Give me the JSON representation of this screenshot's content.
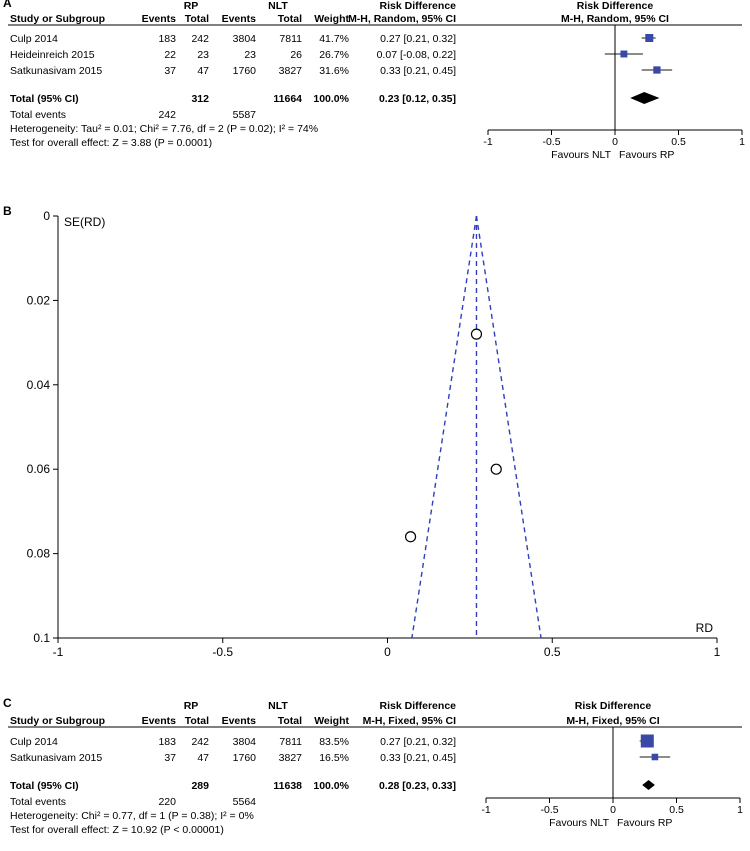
{
  "panels": {
    "A": {
      "letter": "A",
      "group1": "RP",
      "group2": "NLT",
      "col_study": "Study or Subgroup",
      "col_events1": "Events",
      "col_total1": "Total",
      "col_events2": "Events",
      "col_total2": "Total",
      "col_weight": "Weight",
      "col_rd_title": "Risk Difference",
      "col_rd_method": "M-H, Random, 95% CI",
      "plot_title": "Risk Difference",
      "plot_method": "M-H, Random, 95% CI",
      "studies": [
        {
          "name": "Culp 2014",
          "events1": "183",
          "total1": "242",
          "events2": "3804",
          "total2": "7811",
          "weight": "41.7%",
          "ci_text": "0.27 [0.21, 0.32]",
          "est": 0.27,
          "lo": 0.21,
          "hi": 0.32,
          "w": 41.7
        },
        {
          "name": "Heideinreich 2015",
          "events1": "22",
          "total1": "23",
          "events2": "23",
          "total2": "26",
          "weight": "26.7%",
          "ci_text": "0.07 [-0.08, 0.22]",
          "est": 0.07,
          "lo": -0.08,
          "hi": 0.22,
          "w": 26.7
        },
        {
          "name": "Satkunasivam 2015",
          "events1": "37",
          "total1": "47",
          "events2": "1760",
          "total2": "3827",
          "weight": "31.6%",
          "ci_text": "0.33 [0.21, 0.45]",
          "est": 0.33,
          "lo": 0.21,
          "hi": 0.45,
          "w": 31.6
        }
      ],
      "total": {
        "label": "Total (95% CI)",
        "total1": "312",
        "total2": "11664",
        "weight": "100.0%",
        "ci_text": "0.23 [0.12, 0.35]",
        "est": 0.23,
        "lo": 0.12,
        "hi": 0.35
      },
      "events_row": {
        "label": "Total events",
        "events1": "242",
        "events2": "5587"
      },
      "heterogeneity": "Heterogeneity: Tau² = 0.01; Chi² = 7.76, df = 2 (P = 0.02); I² = 74%",
      "overall": "Test for overall effect: Z = 3.88 (P = 0.0001)",
      "axis_ticks": [
        "-1",
        "-0.5",
        "0",
        "0.5",
        "1"
      ],
      "axis_values": [
        -1,
        -0.5,
        0,
        0.5,
        1
      ],
      "favours_left": "Favours NLT",
      "favours_right": "Favours RP"
    },
    "B": {
      "letter": "B",
      "y_label": "SE(RD)",
      "x_label": "RD",
      "x_ticks": [
        "-1",
        "-0.5",
        "0",
        "0.5",
        "1"
      ],
      "y_ticks": [
        "0",
        "0.02",
        "0.04",
        "0.06",
        "0.08",
        "0.1"
      ]
    },
    "C": {
      "letter": "C",
      "group1": "RP",
      "group2": "NLT",
      "col_study": "Study or Subgroup",
      "col_events1": "Events",
      "col_total1": "Total",
      "col_events2": "Events",
      "col_total2": "Total",
      "col_weight": "Weight",
      "col_rd_title": "Risk Difference",
      "col_rd_method": "M-H, Fixed, 95% CI",
      "plot_title": "Risk Difference",
      "plot_method": "M-H, Fixed, 95% CI",
      "studies": [
        {
          "name": "Culp 2014",
          "events1": "183",
          "total1": "242",
          "events2": "3804",
          "total2": "7811",
          "weight": "83.5%",
          "ci_text": "0.27 [0.21, 0.32]",
          "est": 0.27,
          "lo": 0.21,
          "hi": 0.32,
          "w": 83.5
        },
        {
          "name": "Satkunasivam 2015",
          "events1": "37",
          "total1": "47",
          "events2": "1760",
          "total2": "3827",
          "weight": "16.5%",
          "ci_text": "0.33 [0.21, 0.45]",
          "est": 0.33,
          "lo": 0.21,
          "hi": 0.45,
          "w": 16.5
        }
      ],
      "total": {
        "label": "Total (95% CI)",
        "total1": "289",
        "total2": "11638",
        "weight": "100.0%",
        "ci_text": "0.28 [0.23, 0.33]",
        "est": 0.28,
        "lo": 0.23,
        "hi": 0.33
      },
      "events_row": {
        "label": "Total events",
        "events1": "220",
        "events2": "5564"
      },
      "heterogeneity": "Heterogeneity: Chi² = 0.77, df = 1 (P = 0.38); I² = 0%",
      "overall": "Test for overall effect: Z = 10.92 (P < 0.00001)",
      "axis_ticks": [
        "-1",
        "-0.5",
        "0",
        "0.5",
        "1"
      ],
      "axis_values": [
        -1,
        -0.5,
        0,
        0.5,
        1
      ],
      "favours_left": "Favours NLT",
      "favours_right": "Favours RP"
    }
  },
  "colors": {
    "marker": "#3a49a8",
    "funnel": "#2f3fc0",
    "text": "#000000",
    "axis": "#000000"
  },
  "chart_data": [
    {
      "type": "forest",
      "panel": "A",
      "categories": [
        "Culp 2014",
        "Heideinreich 2015",
        "Satkunasivam 2015",
        "Total (95% CI)"
      ],
      "series": [
        {
          "name": "Risk Difference",
          "values": [
            0.27,
            0.07,
            0.33,
            0.23
          ]
        }
      ],
      "ci_lower": [
        0.21,
        -0.08,
        0.21,
        0.12
      ],
      "ci_upper": [
        0.32,
        0.22,
        0.45,
        0.35
      ],
      "weights_pct": [
        41.7,
        26.7,
        31.6,
        100.0
      ],
      "xlim": [
        -1,
        1
      ],
      "x_ticks": [
        -1,
        -0.5,
        0,
        0.5,
        1
      ],
      "xlabel_left": "Favours NLT",
      "xlabel_right": "Favours RP"
    },
    {
      "type": "scatter",
      "panel": "B",
      "xlabel": "RD",
      "ylabel": "SE(RD)",
      "xlim": [
        -1,
        1
      ],
      "ylim": [
        0.1,
        0
      ],
      "y_reversed": true,
      "x_ticks": [
        -1,
        -0.5,
        0,
        0.5,
        1
      ],
      "y_ticks": [
        0,
        0.02,
        0.04,
        0.06,
        0.08,
        0.1
      ],
      "points": [
        {
          "x": 0.27,
          "y": 0.028
        },
        {
          "x": 0.33,
          "y": 0.06
        },
        {
          "x": 0.07,
          "y": 0.076
        }
      ],
      "pooled_estimate": 0.27,
      "funnel": "pseudo 95% confidence limits (dashed)"
    },
    {
      "type": "forest",
      "panel": "C",
      "categories": [
        "Culp 2014",
        "Satkunasivam 2015",
        "Total (95% CI)"
      ],
      "series": [
        {
          "name": "Risk Difference",
          "values": [
            0.27,
            0.33,
            0.28
          ]
        }
      ],
      "ci_lower": [
        0.21,
        0.21,
        0.23
      ],
      "ci_upper": [
        0.32,
        0.45,
        0.33
      ],
      "weights_pct": [
        83.5,
        16.5,
        100.0
      ],
      "xlim": [
        -1,
        1
      ],
      "x_ticks": [
        -1,
        -0.5,
        0,
        0.5,
        1
      ],
      "xlabel_left": "Favours NLT",
      "xlabel_right": "Favours RP"
    }
  ]
}
